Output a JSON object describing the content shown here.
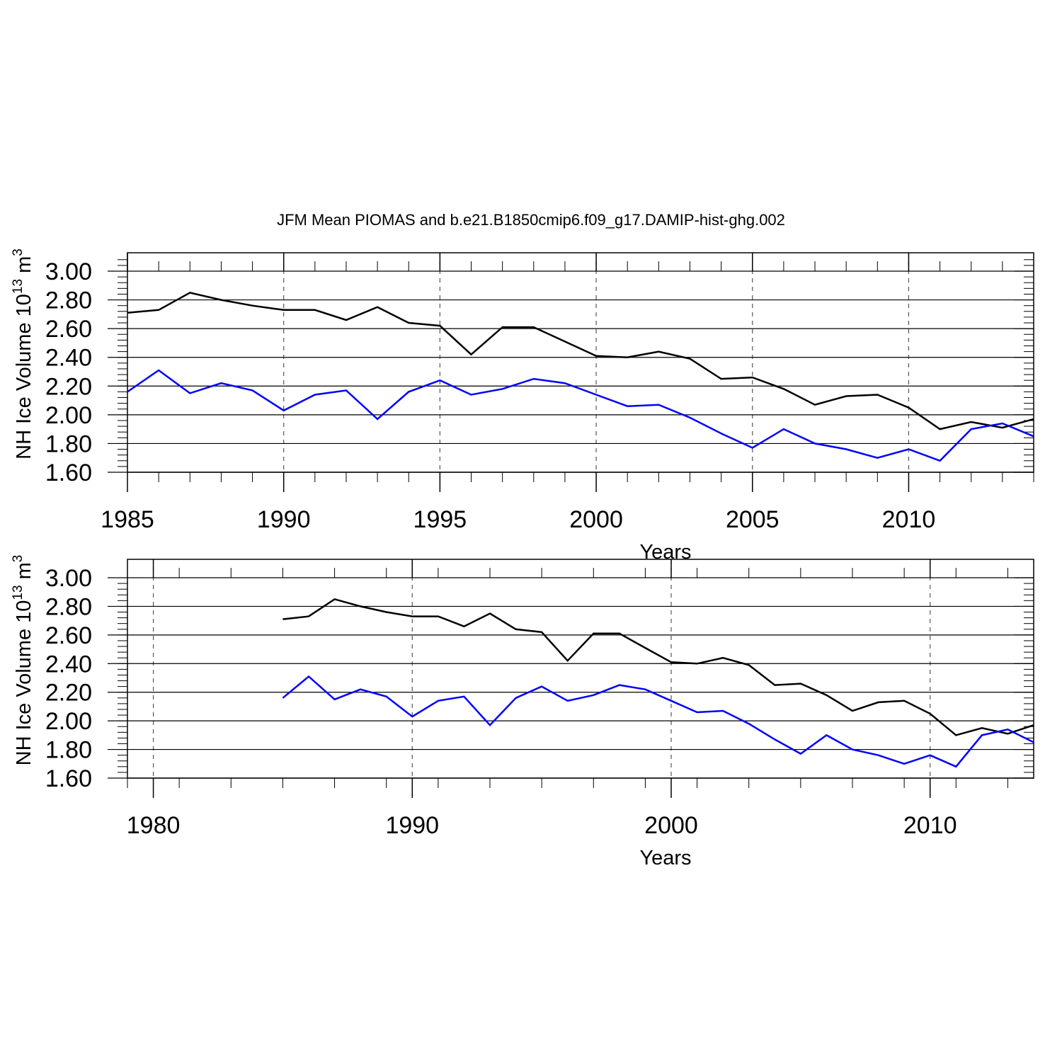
{
  "title": "JFM Mean PIOMAS and b.e21.B1850cmip6.f09_g17.DAMIP-hist-ghg.002",
  "colors": {
    "black_series": "#000000",
    "blue_series": "#0000ff",
    "grid": "#555555",
    "background": "#ffffff"
  },
  "chart_data": [
    {
      "type": "line",
      "title": "JFM Mean PIOMAS and b.e21.B1850cmip6.f09_g17.DAMIP-hist-ghg.002",
      "xlabel": "Years",
      "ylabel": {
        "text": "NH Ice Volume 10",
        "superscript": "13",
        "unit": "m",
        "unit_superscript": "3"
      },
      "xlim": [
        1985,
        2014
      ],
      "ylim": [
        1.6,
        3.1
      ],
      "xticks": [
        1985,
        1990,
        1995,
        2000,
        2005,
        2010
      ],
      "xtick_labels": [
        "1985",
        "1990",
        "1995",
        "2000",
        "2005",
        "2010"
      ],
      "yticks": [
        1.6,
        1.8,
        2.0,
        2.2,
        2.4,
        2.6,
        2.8,
        3.0
      ],
      "ytick_labels": [
        "1.60",
        "1.80",
        "2.00",
        "2.20",
        "2.40",
        "2.60",
        "2.80",
        "3.00"
      ],
      "grid": "vertical dashed at major x ticks",
      "x": [
        1985,
        1986,
        1987,
        1988,
        1989,
        1990,
        1991,
        1992,
        1993,
        1994,
        1995,
        1996,
        1997,
        1998,
        1999,
        2000,
        2001,
        2002,
        2003,
        2004,
        2005,
        2006,
        2007,
        2008,
        2009,
        2010,
        2011,
        2012,
        2013,
        2014
      ],
      "series": [
        {
          "color": "#000000",
          "values": [
            2.71,
            2.73,
            2.85,
            2.8,
            2.76,
            2.73,
            2.73,
            2.66,
            2.75,
            2.64,
            2.62,
            2.42,
            2.61,
            2.61,
            2.51,
            2.41,
            2.4,
            2.44,
            2.39,
            2.25,
            2.26,
            2.18,
            2.07,
            2.13,
            2.14,
            2.05,
            1.9,
            1.95,
            1.91,
            1.97
          ]
        },
        {
          "color": "#0000ff",
          "values": [
            2.16,
            2.31,
            2.15,
            2.22,
            2.17,
            2.03,
            2.14,
            2.17,
            1.97,
            2.16,
            2.24,
            2.14,
            2.18,
            2.25,
            2.22,
            2.14,
            2.06,
            2.07,
            1.98,
            1.87,
            1.77,
            1.9,
            1.8,
            1.76,
            1.7,
            1.76,
            1.68,
            1.9,
            1.94,
            1.85
          ]
        }
      ]
    },
    {
      "type": "line",
      "xlabel": "Years",
      "ylabel": {
        "text": "NH Ice Volume 10",
        "superscript": "13",
        "unit": "m",
        "unit_superscript": "3"
      },
      "xlim": [
        1979,
        2014
      ],
      "ylim": [
        1.6,
        3.0
      ],
      "xticks": [
        1980,
        1990,
        2000,
        2010
      ],
      "xtick_labels": [
        "1980",
        "1990",
        "2000",
        "2010"
      ],
      "yticks": [
        1.6,
        1.8,
        2.0,
        2.2,
        2.4,
        2.6,
        2.8,
        3.0
      ],
      "ytick_labels": [
        "1.60",
        "1.80",
        "2.00",
        "2.20",
        "2.40",
        "2.60",
        "2.80",
        "3.00"
      ],
      "grid": "vertical dashed at major x ticks",
      "x": [
        1985,
        1986,
        1987,
        1988,
        1989,
        1990,
        1991,
        1992,
        1993,
        1994,
        1995,
        1996,
        1997,
        1998,
        1999,
        2000,
        2001,
        2002,
        2003,
        2004,
        2005,
        2006,
        2007,
        2008,
        2009,
        2010,
        2011,
        2012,
        2013,
        2014
      ],
      "series": [
        {
          "color": "#000000",
          "values": [
            2.71,
            2.73,
            2.85,
            2.8,
            2.76,
            2.73,
            2.73,
            2.66,
            2.75,
            2.64,
            2.62,
            2.42,
            2.61,
            2.61,
            2.51,
            2.41,
            2.4,
            2.44,
            2.39,
            2.25,
            2.26,
            2.18,
            2.07,
            2.13,
            2.14,
            2.05,
            1.9,
            1.95,
            1.91,
            1.97
          ]
        },
        {
          "color": "#0000ff",
          "values": [
            2.16,
            2.31,
            2.15,
            2.22,
            2.17,
            2.03,
            2.14,
            2.17,
            1.97,
            2.16,
            2.24,
            2.14,
            2.18,
            2.25,
            2.22,
            2.14,
            2.06,
            2.07,
            1.98,
            1.87,
            1.77,
            1.9,
            1.8,
            1.76,
            1.7,
            1.76,
            1.68,
            1.9,
            1.94,
            1.85
          ]
        }
      ]
    }
  ]
}
